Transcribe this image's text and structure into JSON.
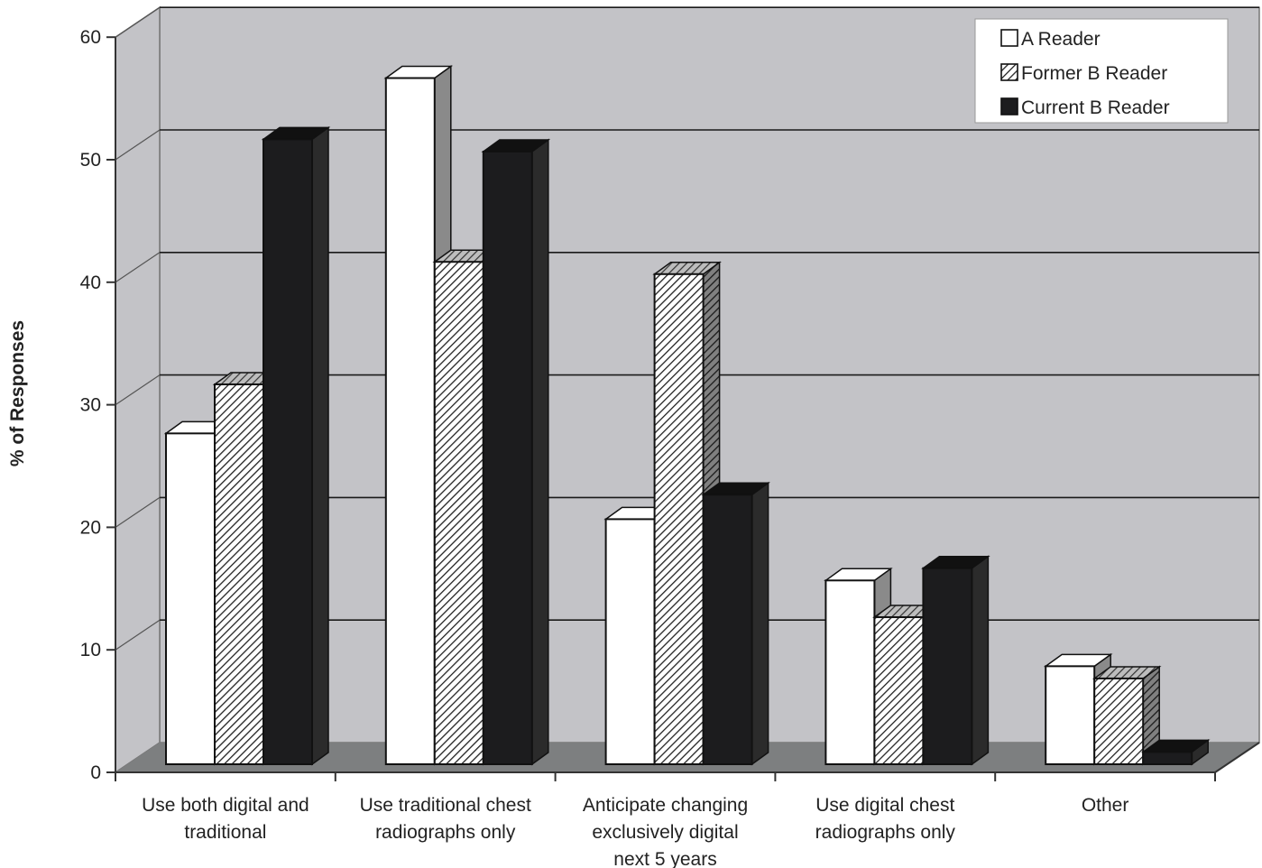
{
  "chart_data": {
    "type": "bar",
    "categories": [
      [
        "Use both digital and",
        "traditional"
      ],
      [
        "Use traditional chest",
        "radiographs only"
      ],
      [
        "Anticipate changing",
        "exclusively digital",
        "next 5 years"
      ],
      [
        "Use digital chest",
        "radiographs only"
      ],
      [
        "Other"
      ]
    ],
    "series": [
      {
        "name": "A Reader",
        "values": [
          27,
          56,
          20,
          15,
          8
        ],
        "pattern": "white"
      },
      {
        "name": "Former B Reader",
        "values": [
          31,
          41,
          40,
          12,
          7
        ],
        "pattern": "hatched"
      },
      {
        "name": "Current B Reader",
        "values": [
          51,
          50,
          22,
          16,
          1
        ],
        "pattern": "black"
      }
    ],
    "ylabel": "% of Responses",
    "xlabel": "",
    "title": "",
    "ylim": [
      0,
      60
    ],
    "yticks": [
      "0",
      "10",
      "20",
      "30",
      "40",
      "50",
      "60"
    ],
    "grid": true,
    "legend_position": "top-right",
    "colors": {
      "back_wall": "#c3c3c7",
      "floor": "#7d7f80",
      "white_bar": "#ffffff",
      "black_bar": "#1c1c1e",
      "gridline": "#1a1a1a"
    }
  }
}
